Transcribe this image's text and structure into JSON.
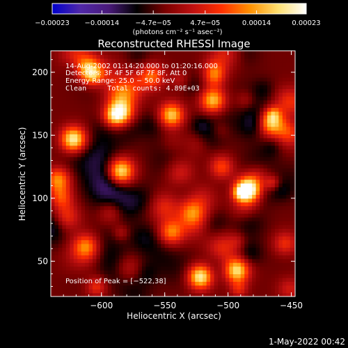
{
  "chart_data": {
    "type": "heatmap",
    "title": "Reconstructed RHESSI Image",
    "xlabel": "Heliocentric X (arcsec)",
    "ylabel": "Heliocentric Y (arcsec)",
    "xlim": [
      -640,
      -447
    ],
    "ylim": [
      22,
      217
    ],
    "xticks": [
      -600,
      -550,
      -500,
      -450
    ],
    "xtick_labels": [
      "−600",
      "−550",
      "−500",
      "−450"
    ],
    "yticks": [
      50,
      100,
      150,
      200
    ],
    "ytick_labels": [
      "50",
      "100",
      "150",
      "200"
    ],
    "colorbar": {
      "range": [
        -0.00023,
        0.00023
      ],
      "ticks": [
        -0.00023,
        -0.00014,
        -4.7e-05,
        4.7e-05,
        0.00014,
        0.00023
      ],
      "tick_labels": [
        "−0.00023",
        "−0.00014",
        "−4.7e−05",
        "4.7e−05",
        "0.00014",
        "0.00023"
      ],
      "unit_label": "(photons cm⁻² s⁻¹ asec⁻²)",
      "colors": [
        "#0000cc",
        "#5028a8",
        "#4a1a7a",
        "#000000",
        "#7a0000",
        "#c01010",
        "#ff3000",
        "#ff9000",
        "#ffe070",
        "#ffffff"
      ]
    },
    "annotations": {
      "time_range": "14‑Aug‑2002 01:14:20.000 to 01:20:16.000",
      "detectors": "Detectors: 3F 4F 5F 6F 7F 8F, Att 0",
      "energy_range": "Energy Range: 25.0 − 50.0 keV",
      "clean_counts": "Clean     Total counts: 4.89E+03",
      "peak_position": "Position of Peak = [−522,38]"
    },
    "peak": {
      "x": -522,
      "y": 38
    },
    "bright_sources": [
      {
        "x": -522,
        "y": 38,
        "value": 0.00023
      },
      {
        "x": -493,
        "y": 43,
        "value": 0.00019
      },
      {
        "x": -622,
        "y": 147,
        "value": 0.00021
      },
      {
        "x": -585,
        "y": 168,
        "value": 0.00019
      },
      {
        "x": -545,
        "y": 166,
        "value": 0.0002
      },
      {
        "x": -484,
        "y": 107,
        "value": 0.00021
      },
      {
        "x": -466,
        "y": 160,
        "value": 0.00017
      },
      {
        "x": -512,
        "y": 178,
        "value": 0.00016
      },
      {
        "x": -585,
        "y": 121,
        "value": 0.00015
      },
      {
        "x": -634,
        "y": 115,
        "value": 0.00013
      },
      {
        "x": -610,
        "y": 203,
        "value": 0.00013
      },
      {
        "x": -545,
        "y": 73,
        "value": 0.00012
      },
      {
        "x": -612,
        "y": 62,
        "value": 0.00011
      },
      {
        "x": -505,
        "y": 125,
        "value": 0.00011
      },
      {
        "x": -560,
        "y": 197,
        "value": 0.0001
      },
      {
        "x": -455,
        "y": 64,
        "value": 9e-05
      }
    ],
    "grid": false,
    "legend": "none"
  },
  "footer": {
    "timestamp": "1‑May‑2022 00:42"
  }
}
